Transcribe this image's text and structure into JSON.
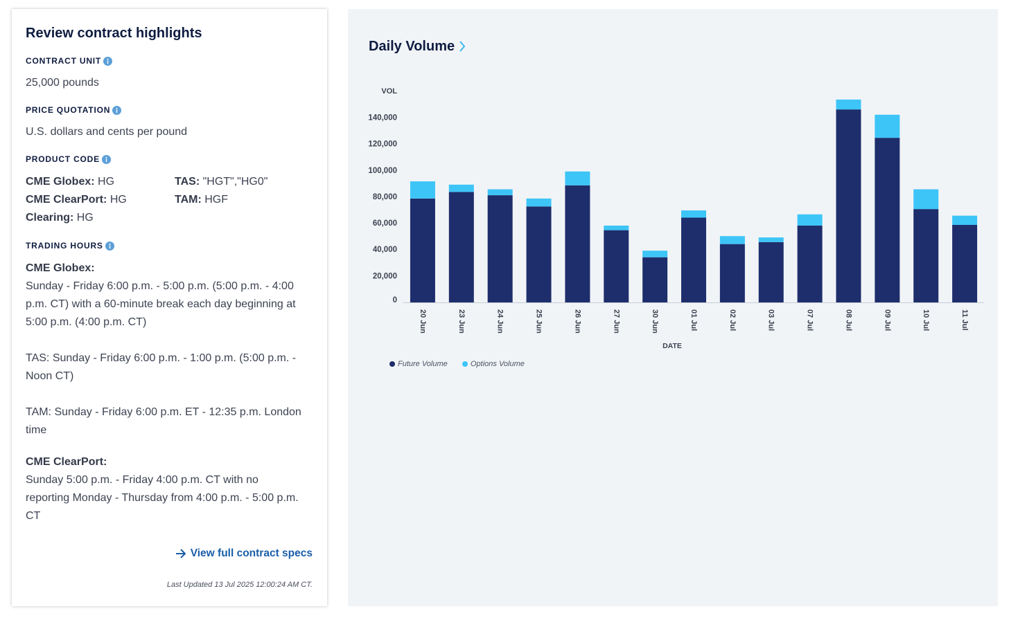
{
  "highlights": {
    "title": "Review contract highlights",
    "contract_unit": {
      "label": "CONTRACT UNIT",
      "value": "25,000 pounds"
    },
    "price_quotation": {
      "label": "PRICE QUOTATION",
      "value": "U.S. dollars and cents per pound"
    },
    "product_code": {
      "label": "PRODUCT CODE",
      "items": [
        {
          "label": "CME Globex:",
          "value": "HG"
        },
        {
          "label": "TAS:",
          "value": "\"HGT\",\"HG0\""
        },
        {
          "label": "CME ClearPort:",
          "value": "HG"
        },
        {
          "label": "TAM:",
          "value": "HGF"
        },
        {
          "label": "Clearing:",
          "value": "HG"
        }
      ]
    },
    "trading_hours": {
      "label": "TRADING HOURS",
      "blocks": [
        {
          "heading": "CME Globex:",
          "lines": [
            "Sunday - Friday 6:00 p.m. - 5:00 p.m. (5:00 p.m. - 4:00",
            "p.m. CT) with a 60-minute break each day beginning at",
            "5:00 p.m. (4:00 p.m. CT)"
          ]
        },
        {
          "lines": [
            "TAS: Sunday - Friday 6:00 p.m. - 1:00 p.m. (5:00 p.m. -",
            "Noon CT)"
          ]
        },
        {
          "lines": [
            "TAM: Sunday - Friday 6:00 p.m. ET - 12:35 p.m. London",
            "time"
          ]
        },
        {
          "heading": "CME ClearPort:",
          "lines": [
            "Sunday 5:00 p.m. - Friday 4:00 p.m. CT with no",
            "reporting Monday - Thursday from 4:00 p.m. - 5:00 p.m.",
            "CT"
          ]
        }
      ]
    },
    "specs_link": "View full contract specs",
    "last_updated": "Last Updated 13 Jul 2025 12:00:24 AM CT."
  },
  "icons": {
    "info": "info-icon",
    "link_arrow": "arrow-right-icon",
    "title_chevron": "chevron-right-icon"
  },
  "colors": {
    "title": "#0f1c40",
    "link": "#1a5ea8",
    "info": "#5b9fd8",
    "chevron": "#3fb6ea",
    "panel_bg": "#f1f4f7"
  },
  "chart_data": {
    "type": "bar",
    "stacked": true,
    "title": "Daily Volume",
    "xlabel": "DATE",
    "ylabel": "VOL",
    "categories": [
      "20 Jun",
      "23 Jun",
      "24 Jun",
      "25 Jun",
      "26 Jun",
      "27 Jun",
      "30 Jun",
      "01 Jul",
      "02 Jul",
      "03 Jul",
      "07 Jul",
      "08 Jul",
      "09 Jul",
      "10 Jul",
      "11 Jul"
    ],
    "series": [
      {
        "name": "Future Volume",
        "color": "#1e2e6c",
        "values": [
          79000,
          84000,
          81500,
          73000,
          89000,
          55000,
          34500,
          64500,
          44500,
          46000,
          58500,
          146500,
          125000,
          71000,
          59000
        ]
      },
      {
        "name": "Options Volume",
        "color": "#3dc5f7",
        "values": [
          13000,
          5500,
          4500,
          6000,
          10500,
          3500,
          5000,
          5500,
          6000,
          3500,
          8500,
          7500,
          17500,
          15000,
          7000
        ]
      }
    ],
    "yticks": [
      0,
      20000,
      40000,
      60000,
      80000,
      100000,
      120000,
      140000
    ],
    "ytick_labels": [
      "0",
      "20,000",
      "40,000",
      "60,000",
      "80,000",
      "100,000",
      "120,000",
      "140,000"
    ],
    "ylim": [
      0,
      160000
    ],
    "grid": false
  }
}
